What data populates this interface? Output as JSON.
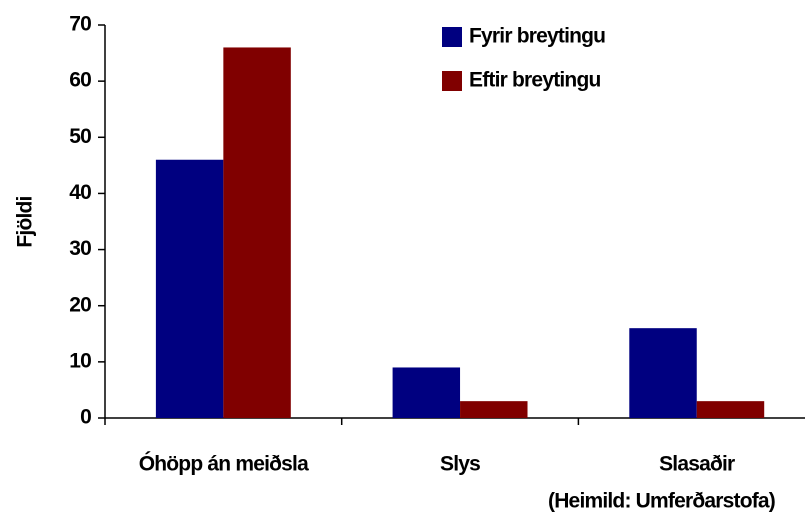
{
  "chart_data": {
    "type": "bar",
    "y_label": "Fjöldi",
    "annotation": "(Heimild: Umferðarstofa)",
    "categories": [
      "Óhöpp án meiðsla",
      "Slys",
      "Slasaðir"
    ],
    "series": [
      {
        "name": "Fyrir breytingu",
        "color": "#000080",
        "values": [
          46,
          9,
          16
        ]
      },
      {
        "name": "Eftir breytingu",
        "color": "#800000",
        "values": [
          66,
          3,
          3
        ]
      }
    ],
    "ylim": [
      0,
      70
    ],
    "yticks": [
      0,
      10,
      20,
      30,
      40,
      50,
      60,
      70
    ],
    "legend": "top-right",
    "grid": false
  }
}
